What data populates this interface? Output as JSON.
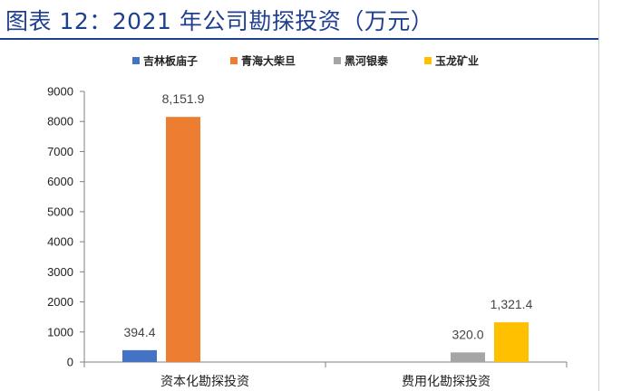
{
  "header": {
    "title": "图表 12：2021 年公司勘探投资（万元）"
  },
  "chart_data": {
    "type": "bar",
    "title": "",
    "xlabel": "",
    "ylabel": "",
    "ylim": [
      0,
      9000
    ],
    "yticks": [
      0,
      1000,
      2000,
      3000,
      4000,
      5000,
      6000,
      7000,
      8000,
      9000
    ],
    "grid": false,
    "legend_position": "top",
    "categories": [
      "资本化勘探投资",
      "费用化勘探投资"
    ],
    "series": [
      {
        "name": "吉林板庙子",
        "color": "#4472C4",
        "values": [
          394.4,
          null
        ],
        "labels": [
          "394.4",
          ""
        ]
      },
      {
        "name": "青海大柴旦",
        "color": "#ED7D31",
        "values": [
          8151.9,
          null
        ],
        "labels": [
          "8,151.9",
          ""
        ]
      },
      {
        "name": "黑河银泰",
        "color": "#A5A5A5",
        "values": [
          null,
          320.0
        ],
        "labels": [
          "",
          "320.0"
        ]
      },
      {
        "name": "玉龙矿业",
        "color": "#FFC000",
        "values": [
          null,
          1321.4
        ],
        "labels": [
          "",
          "1,321.4"
        ]
      }
    ]
  }
}
